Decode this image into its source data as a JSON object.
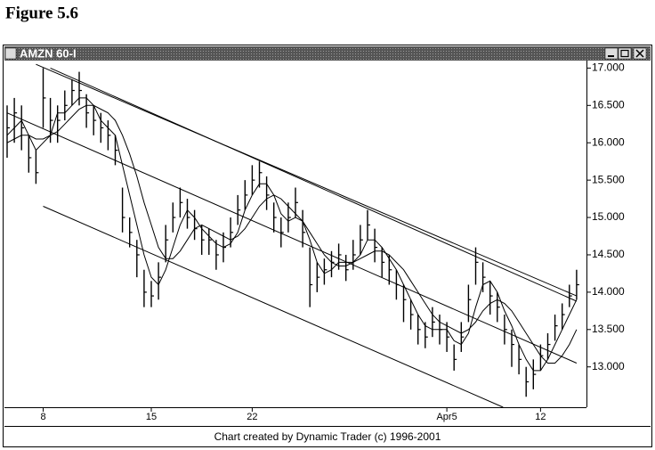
{
  "figure_label": "Figure 5.6",
  "footer": "Chart created by Dynamic Trader (c) 1996-2001",
  "chart_data": {
    "type": "hlc",
    "title": "AMZN 60-I",
    "color": "#000000",
    "categories": [
      null,
      null,
      null,
      null,
      null,
      "8",
      null,
      null,
      null,
      null,
      null,
      null,
      null,
      null,
      null,
      null,
      null,
      null,
      null,
      null,
      "15",
      null,
      null,
      null,
      null,
      null,
      null,
      null,
      null,
      null,
      null,
      null,
      null,
      null,
      "22",
      null,
      null,
      null,
      null,
      null,
      null,
      null,
      null,
      null,
      null,
      null,
      null,
      null,
      null,
      null,
      null,
      null,
      null,
      null,
      null,
      null,
      null,
      null,
      null,
      null,
      null,
      "Apr5",
      null,
      null,
      null,
      null,
      null,
      null,
      null,
      null,
      null,
      null,
      null,
      null,
      "12",
      null,
      null,
      null,
      null,
      null
    ],
    "high": [
      16.5,
      16.6,
      16.5,
      16.1,
      15.9,
      17.0,
      16.6,
      16.5,
      16.7,
      16.85,
      16.95,
      16.65,
      16.5,
      16.4,
      16.3,
      16.1,
      15.4,
      15.0,
      14.7,
      14.3,
      14.15,
      14.4,
      14.9,
      15.2,
      15.4,
      15.25,
      15.1,
      14.9,
      14.85,
      14.7,
      14.8,
      15.0,
      15.3,
      15.5,
      15.7,
      15.75,
      15.55,
      15.2,
      15.0,
      15.2,
      15.4,
      15.1,
      14.6,
      14.4,
      14.45,
      14.55,
      14.65,
      14.5,
      14.7,
      14.9,
      15.1,
      14.85,
      14.6,
      14.5,
      14.3,
      14.1,
      13.9,
      13.7,
      13.6,
      13.8,
      13.7,
      13.6,
      13.3,
      13.6,
      14.1,
      14.6,
      14.4,
      14.15,
      14.0,
      13.7,
      13.5,
      13.3,
      13.0,
      13.1,
      13.3,
      13.45,
      13.7,
      13.85,
      14.1,
      14.3
    ],
    "low": [
      15.8,
      16.0,
      15.9,
      15.6,
      15.45,
      16.2,
      16.0,
      16.0,
      16.3,
      16.5,
      16.5,
      16.2,
      16.1,
      16.0,
      15.9,
      15.7,
      14.8,
      14.6,
      14.2,
      13.8,
      13.8,
      13.9,
      14.4,
      14.8,
      15.0,
      14.85,
      14.7,
      14.5,
      14.5,
      14.3,
      14.4,
      14.6,
      14.9,
      15.1,
      15.3,
      15.4,
      15.1,
      14.8,
      14.6,
      14.8,
      15.0,
      14.6,
      13.8,
      14.0,
      14.1,
      14.2,
      14.3,
      14.15,
      14.3,
      14.5,
      14.7,
      14.4,
      14.2,
      14.1,
      13.9,
      13.6,
      13.5,
      13.3,
      13.25,
      13.4,
      13.3,
      13.2,
      12.95,
      13.2,
      13.6,
      14.1,
      14.0,
      13.7,
      13.6,
      13.3,
      13.0,
      12.9,
      12.6,
      12.7,
      12.95,
      13.1,
      13.35,
      13.5,
      13.8,
      13.9
    ],
    "close": [
      16.2,
      16.4,
      16.2,
      15.8,
      15.6,
      16.6,
      16.3,
      16.3,
      16.5,
      16.7,
      16.7,
      16.4,
      16.3,
      16.2,
      16.1,
      15.9,
      15.0,
      14.8,
      14.5,
      14.0,
      13.95,
      14.2,
      14.7,
      15.0,
      15.2,
      15.0,
      14.85,
      14.7,
      14.7,
      14.5,
      14.6,
      14.8,
      15.1,
      15.3,
      15.5,
      15.6,
      15.3,
      15.0,
      14.8,
      15.0,
      15.2,
      14.8,
      14.1,
      14.2,
      14.3,
      14.4,
      14.5,
      14.3,
      14.5,
      14.7,
      14.9,
      14.6,
      14.4,
      14.3,
      14.1,
      13.9,
      13.7,
      13.5,
      13.4,
      13.6,
      13.5,
      13.4,
      13.1,
      13.4,
      13.9,
      14.4,
      14.2,
      13.95,
      13.8,
      13.5,
      13.3,
      13.1,
      12.8,
      12.9,
      13.15,
      13.3,
      13.55,
      13.7,
      13.95,
      14.1
    ],
    "series": [
      {
        "color": "#000000",
        "values": [
          16.1,
          16.2,
          16.3,
          16.1,
          15.9,
          16.0,
          16.1,
          16.4,
          16.4,
          16.5,
          16.6,
          16.6,
          16.5,
          16.3,
          16.2,
          16.1,
          15.7,
          15.3,
          14.9,
          14.5,
          14.2,
          14.1,
          14.3,
          14.6,
          14.9,
          15.1,
          15.0,
          14.85,
          14.75,
          14.65,
          14.6,
          14.65,
          14.8,
          15.1,
          15.3,
          15.45,
          15.45,
          15.3,
          15.05,
          14.95,
          15.0,
          14.95,
          14.7,
          14.4,
          14.25,
          14.3,
          14.4,
          14.4,
          14.4,
          14.5,
          14.7,
          14.7,
          14.6,
          14.45,
          14.3,
          14.1,
          13.9,
          13.7,
          13.55,
          13.5,
          13.5,
          13.5,
          13.35,
          13.3,
          13.45,
          13.8,
          14.1,
          14.15,
          14.0,
          13.75,
          13.55,
          13.3,
          13.1,
          12.95,
          12.95,
          13.1,
          13.3,
          13.5,
          13.7,
          13.9
        ]
      },
      {
        "color": "#000000",
        "values": [
          16.0,
          16.05,
          16.1,
          16.1,
          16.05,
          16.05,
          16.1,
          16.15,
          16.25,
          16.35,
          16.45,
          16.5,
          16.5,
          16.45,
          16.4,
          16.3,
          16.1,
          15.85,
          15.55,
          15.2,
          14.9,
          14.6,
          14.45,
          14.45,
          14.55,
          14.7,
          14.85,
          14.9,
          14.85,
          14.8,
          14.75,
          14.7,
          14.75,
          14.85,
          15.0,
          15.15,
          15.25,
          15.3,
          15.25,
          15.15,
          15.05,
          14.95,
          14.8,
          14.65,
          14.5,
          14.4,
          14.35,
          14.35,
          14.4,
          14.45,
          14.5,
          14.55,
          14.55,
          14.5,
          14.4,
          14.3,
          14.15,
          14.0,
          13.85,
          13.7,
          13.6,
          13.55,
          13.5,
          13.45,
          13.5,
          13.6,
          13.75,
          13.85,
          13.9,
          13.85,
          13.75,
          13.6,
          13.45,
          13.3,
          13.15,
          13.05,
          13.05,
          13.15,
          13.3,
          13.5
        ]
      }
    ],
    "trend_lines": [
      {
        "x": [
          4,
          79
        ],
        "values": [
          17.05,
          13.95
        ]
      },
      {
        "x": [
          6,
          79
        ],
        "values": [
          17.0,
          13.88
        ]
      },
      {
        "x": [
          0,
          79
        ],
        "values": [
          16.4,
          13.05
        ]
      },
      {
        "x": [
          5,
          68.8
        ],
        "values": [
          15.15,
          12.46
        ]
      }
    ],
    "ylim": [
      12.46,
      17.1
    ],
    "yticks": [
      {
        "value": 13,
        "label": "13.000"
      },
      {
        "value": 13.5,
        "label": "13.500"
      },
      {
        "value": 14,
        "label": "14.000"
      },
      {
        "value": 14.5,
        "label": "14.500"
      },
      {
        "value": 15,
        "label": "15.000"
      },
      {
        "value": 15.5,
        "label": "15.500"
      },
      {
        "value": 16,
        "label": "16.000"
      },
      {
        "value": 16.5,
        "label": "16.500"
      },
      {
        "value": 17,
        "label": "17.000"
      }
    ]
  }
}
